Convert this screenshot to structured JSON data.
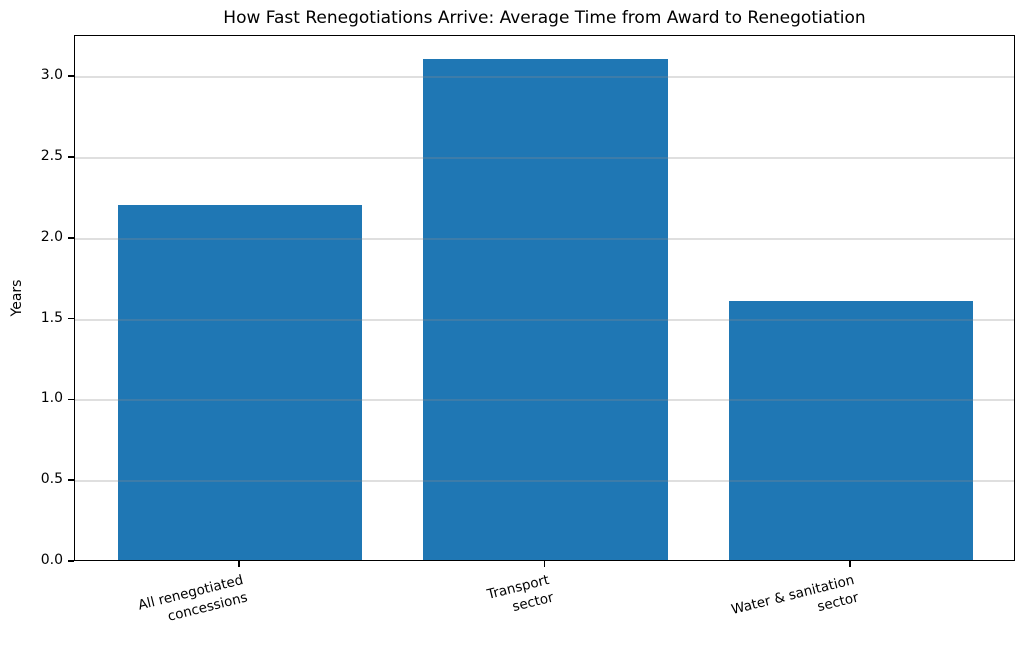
{
  "chart_data": {
    "type": "bar",
    "title": "How Fast Renegotiations Arrive: Average Time from Award to Renegotiation",
    "xlabel": "",
    "ylabel": "Years",
    "categories": [
      "All renegotiated\nconcessions",
      "Transport\nsector",
      "Water & sanitation\nsector"
    ],
    "values": [
      2.2,
      3.1,
      1.6
    ],
    "yticks": [
      0.0,
      0.5,
      1.0,
      1.5,
      2.0,
      2.5,
      3.0
    ],
    "ylim": [
      0,
      3.255
    ],
    "bar_color": "#1f77b4",
    "grid": "horizontal",
    "grid_over_bars": true,
    "legend": "none",
    "tick_label_rotation_deg": 14
  }
}
